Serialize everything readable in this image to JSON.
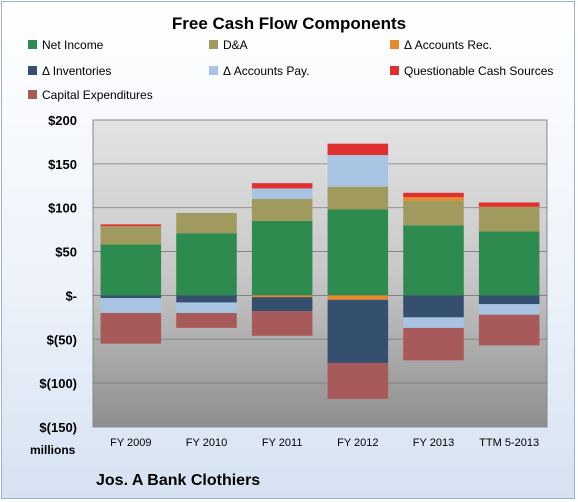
{
  "chart_data": {
    "type": "bar",
    "stacked": true,
    "title": "Free Cash Flow Components",
    "ylabel": "",
    "xlabel": "",
    "units_label": "millions",
    "ylim": [
      -150,
      200
    ],
    "y_ticks": [
      200,
      150,
      100,
      50,
      0,
      -50,
      -100,
      -150
    ],
    "y_tick_labels": [
      "$200",
      "$150",
      "$100",
      "$50",
      "$-",
      "$(50)",
      "$(100)",
      "$(150)"
    ],
    "categories": [
      "FY 2009",
      "FY 2010",
      "FY 2011",
      "FY 2012",
      "FY 2013",
      "TTM 5-2013"
    ],
    "grid": true,
    "legend_position": "top",
    "series": [
      {
        "name": "Net Income",
        "color": "#2e8b4f",
        "values": [
          58,
          71,
          85,
          98,
          80,
          73
        ]
      },
      {
        "name": "D&A",
        "color": "#a09a5e",
        "values": [
          21,
          23,
          25,
          26,
          28,
          28
        ]
      },
      {
        "name": "Δ Accounts Rec.",
        "color": "#e8892b",
        "values": [
          0,
          0,
          -2,
          -5,
          4,
          0
        ]
      },
      {
        "name": "Δ Inventories",
        "color": "#34506e",
        "values": [
          -3,
          -8,
          -16,
          -72,
          -25,
          -10
        ]
      },
      {
        "name": "Δ Accounts Pay.",
        "color": "#a9c4e2",
        "values": [
          -17,
          -12,
          12,
          36,
          -12,
          -12
        ]
      },
      {
        "name": "Questionable Cash Sources",
        "color": "#e03030",
        "values": [
          2,
          0,
          6,
          13,
          5,
          5
        ]
      },
      {
        "name": "Capital Expenditures",
        "color": "#a85a5a",
        "values": [
          -35,
          -17,
          -28,
          -41,
          -37,
          -35
        ]
      }
    ]
  },
  "footer": {
    "company": "Jos. A Bank Clothiers"
  }
}
